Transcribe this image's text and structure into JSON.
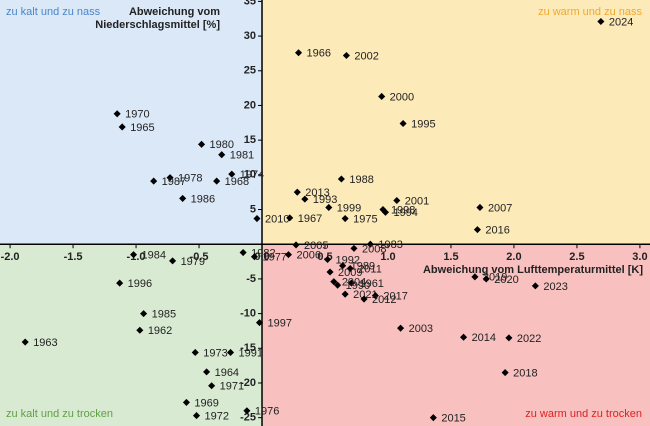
{
  "chart_data": {
    "type": "scatter",
    "x_title": "Abweichung vom Lufttemperaturmittel [K]",
    "y_title": [
      "Abweichung vom",
      "Niederschlagsmittel [%]"
    ],
    "quadrants": [
      {
        "label": "zu kalt und zu nass",
        "color": "#dae8f7",
        "text_color": "#4a86c8"
      },
      {
        "label": "zu warm und zu nass",
        "color": "#fdeab9",
        "text_color": "#f0a830"
      },
      {
        "label": "zu kalt und zu trocken",
        "color": "#d9ead3",
        "text_color": "#5fa044"
      },
      {
        "label": "zu warm und zu trocken",
        "color": "#f9c0c0",
        "text_color": "#e02020"
      }
    ],
    "marker_color": "#000000",
    "xlim": [
      -2.08,
      3.08
    ],
    "ylim": [
      -26.2,
      35.2
    ],
    "xticks": [
      {
        "value": -2,
        "label": "-2.0"
      },
      -1.5,
      {
        "value": -1,
        "label": "-1.0"
      },
      -0.5,
      {
        "value": 0,
        "label": "0.0"
      },
      0.5,
      {
        "value": 1,
        "label": "1.0"
      },
      1.5,
      {
        "value": 2,
        "label": "2.0"
      },
      2.5,
      {
        "value": 3,
        "label": "3.0"
      }
    ],
    "yticks": [
      -25,
      -20,
      -15,
      -10,
      -5,
      0,
      5,
      10,
      15,
      20,
      25,
      30,
      35
    ],
    "point_labels": [
      "2024",
      "1966",
      "2002",
      "2000",
      "1995",
      "1970",
      "1965",
      "1980",
      "1981",
      "1974",
      "1968",
      "1978",
      "1987",
      "1986",
      "2010",
      "2013",
      "1993",
      "1988",
      "1998",
      "2001",
      "1994",
      "1999",
      "1967",
      "1975",
      "2007",
      "2016",
      "1983",
      "1984",
      "1979",
      "1982",
      "1977",
      "2005",
      "2006",
      "1992",
      "1989",
      "2008",
      "2011",
      "2009",
      "1961",
      "2004",
      "1990",
      "2021",
      "2017",
      "2012",
      "2019",
      "2020",
      "2023",
      "1996",
      "1985",
      "1962",
      "1963",
      "1997",
      "2003",
      "2014",
      "2022",
      "2018",
      "1991",
      "1973",
      "1964",
      "1971",
      "1969",
      "1972",
      "1976",
      "2015"
    ],
    "x": [
      2.69,
      0.29,
      0.67,
      0.95,
      1.12,
      -1.15,
      -1.11,
      -0.48,
      -0.32,
      -0.24,
      -0.36,
      -0.73,
      -0.86,
      -0.63,
      -0.04,
      0.28,
      0.34,
      0.63,
      0.96,
      1.07,
      0.98,
      0.53,
      0.22,
      0.66,
      1.73,
      1.71,
      0.86,
      -1.02,
      -0.71,
      -0.15,
      -0.06,
      0.27,
      0.21,
      0.52,
      0.64,
      0.73,
      0.7,
      0.54,
      0.71,
      0.57,
      0.6,
      0.66,
      0.9,
      0.81,
      1.69,
      1.78,
      2.17,
      -1.13,
      -0.94,
      -0.97,
      -1.88,
      -0.02,
      1.1,
      1.6,
      1.96,
      1.93,
      -0.25,
      -0.53,
      -0.44,
      -0.4,
      -0.6,
      -0.52,
      -0.12,
      1.36
    ],
    "values": [
      32.1,
      27.6,
      27.2,
      21.3,
      17.4,
      18.8,
      16.9,
      14.4,
      12.9,
      10.1,
      9.1,
      9.6,
      9.1,
      6.6,
      3.7,
      7.5,
      6.5,
      9.4,
      5.0,
      6.3,
      4.6,
      5.3,
      3.8,
      3.7,
      5.3,
      2.1,
      0,
      -1.5,
      -2.4,
      -1.2,
      -1.8,
      -0.1,
      -1.5,
      -2.2,
      -3.1,
      -0.6,
      -3.5,
      -4.0,
      -5.6,
      -5.4,
      -5.9,
      -7.2,
      -7.4,
      -7.9,
      -4.7,
      -5.0,
      -6.0,
      -5.6,
      -10,
      -12.4,
      -14.1,
      -11.3,
      -12.1,
      -13.4,
      -13.5,
      -18.5,
      -15.6,
      -15.6,
      -18.4,
      -20.4,
      -22.8,
      -24.7,
      -24.0,
      -25.0
    ]
  }
}
